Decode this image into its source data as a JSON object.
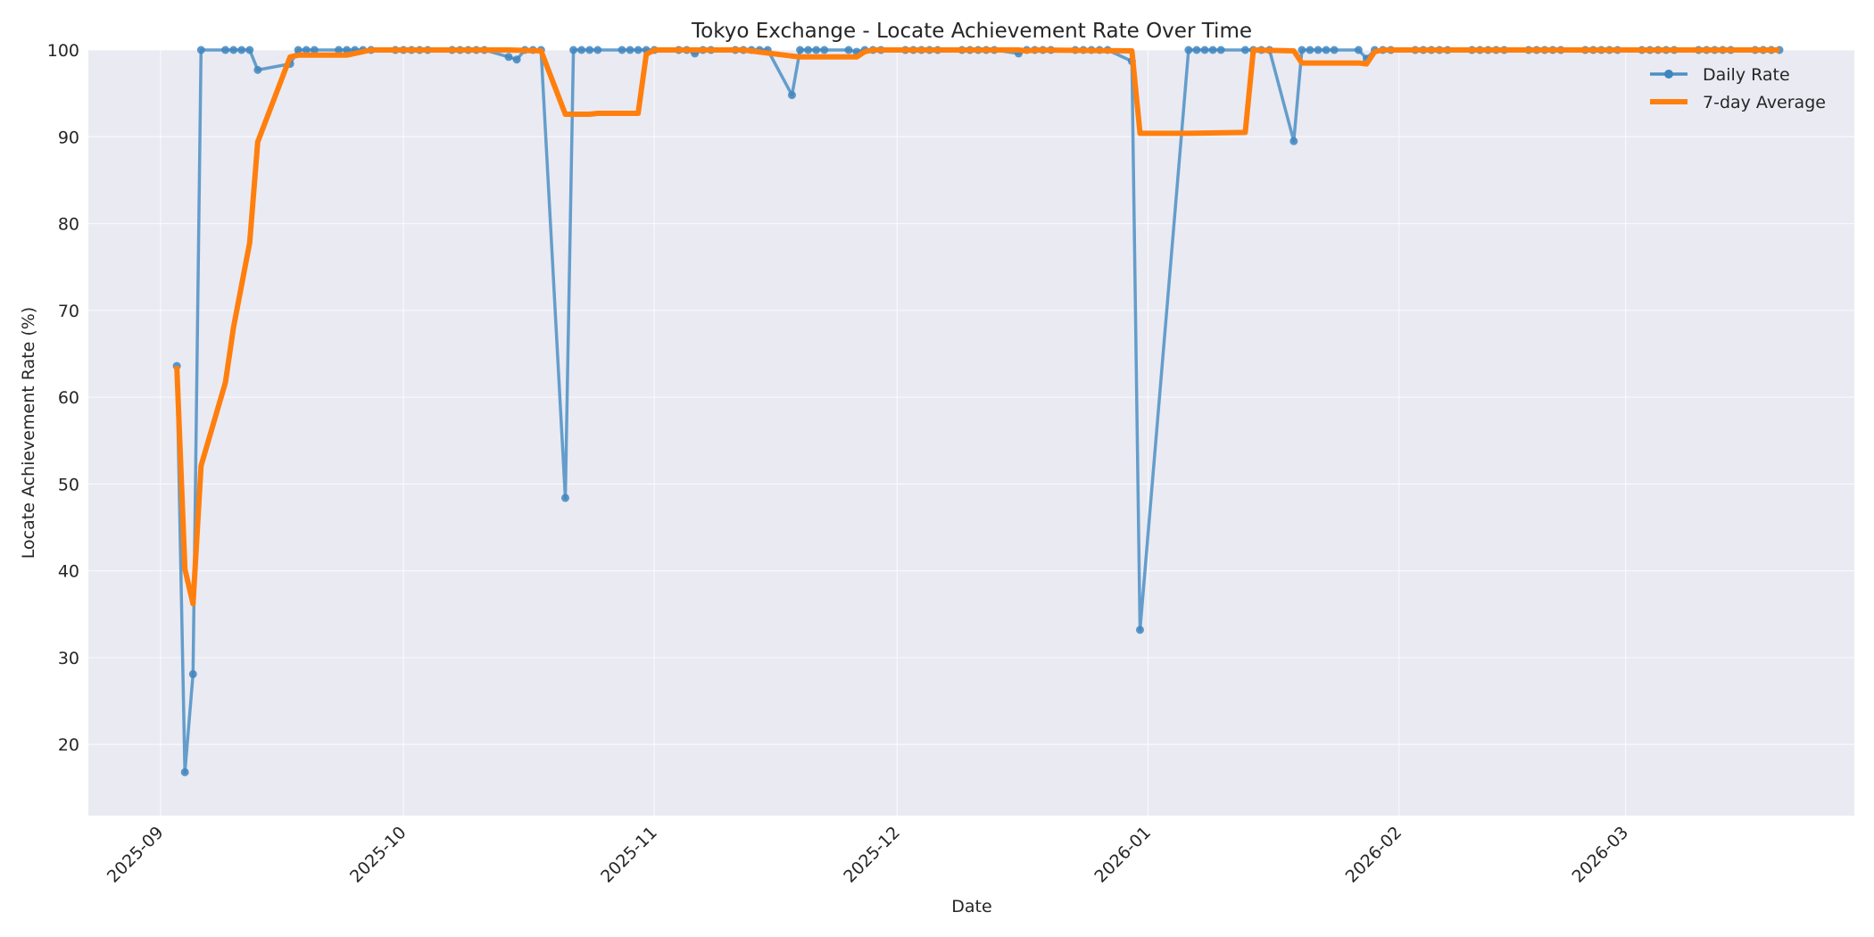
{
  "chart_data": {
    "type": "line",
    "title": "Tokyo Exchange - Locate Achievement Rate Over Time",
    "xlabel": "Date",
    "ylabel": "Locate Achievement Rate (%)",
    "ylim": [
      11.8,
      100
    ],
    "yticks": [
      20,
      30,
      40,
      50,
      60,
      70,
      80,
      90,
      100
    ],
    "xticks": [
      "2025-09",
      "2025-10",
      "2025-11",
      "2025-12",
      "2026-01",
      "2026-02",
      "2026-03"
    ],
    "xtick_day_offsets": [
      0,
      30,
      61,
      91,
      122,
      153,
      181
    ],
    "x_origin_date": "2025-09-01",
    "grid": true,
    "legend_position": "upper right",
    "series": [
      {
        "name": "Daily Rate",
        "color": "#4c8fc4",
        "marker": "circle",
        "points": [
          [
            2,
            63.6
          ],
          [
            3,
            16.8
          ],
          [
            4,
            28.1
          ],
          [
            5,
            100
          ],
          [
            8,
            100
          ],
          [
            9,
            100
          ],
          [
            10,
            100
          ],
          [
            11,
            100
          ],
          [
            12,
            97.7
          ],
          [
            16,
            98.4
          ],
          [
            17,
            100
          ],
          [
            18,
            100
          ],
          [
            19,
            100
          ],
          [
            22,
            100
          ],
          [
            23,
            100
          ],
          [
            24,
            100
          ],
          [
            25,
            100
          ],
          [
            26,
            100
          ],
          [
            29,
            100
          ],
          [
            30,
            100
          ],
          [
            31,
            100
          ],
          [
            32,
            100
          ],
          [
            33,
            100
          ],
          [
            36,
            100
          ],
          [
            37,
            100
          ],
          [
            38,
            100
          ],
          [
            39,
            100
          ],
          [
            40,
            100
          ],
          [
            43,
            99.2
          ],
          [
            44,
            98.9
          ],
          [
            45,
            100
          ],
          [
            46,
            100
          ],
          [
            47,
            100
          ],
          [
            50,
            48.4
          ],
          [
            51,
            100
          ],
          [
            52,
            100
          ],
          [
            53,
            100
          ],
          [
            54,
            100
          ],
          [
            57,
            100
          ],
          [
            58,
            100
          ],
          [
            59,
            100
          ],
          [
            60,
            100
          ],
          [
            61,
            100
          ],
          [
            64,
            100
          ],
          [
            65,
            100
          ],
          [
            66,
            99.6
          ],
          [
            67,
            100
          ],
          [
            68,
            100
          ],
          [
            71,
            100
          ],
          [
            72,
            100
          ],
          [
            73,
            100
          ],
          [
            74,
            100
          ],
          [
            75,
            100
          ],
          [
            78,
            94.8
          ],
          [
            79,
            100
          ],
          [
            80,
            100
          ],
          [
            81,
            100
          ],
          [
            82,
            100
          ],
          [
            85,
            100
          ],
          [
            86,
            99.8
          ],
          [
            87,
            100
          ],
          [
            88,
            100
          ],
          [
            89,
            100
          ],
          [
            92,
            100
          ],
          [
            93,
            100
          ],
          [
            94,
            100
          ],
          [
            95,
            100
          ],
          [
            96,
            100
          ],
          [
            99,
            100
          ],
          [
            100,
            100
          ],
          [
            101,
            100
          ],
          [
            102,
            100
          ],
          [
            103,
            100
          ],
          [
            106,
            99.6
          ],
          [
            107,
            100
          ],
          [
            108,
            100
          ],
          [
            109,
            100
          ],
          [
            110,
            100
          ],
          [
            113,
            100
          ],
          [
            114,
            100
          ],
          [
            115,
            100
          ],
          [
            116,
            100
          ],
          [
            117,
            100
          ],
          [
            120,
            98.7
          ],
          [
            121,
            33.2
          ],
          [
            127,
            100
          ],
          [
            128,
            100
          ],
          [
            129,
            100
          ],
          [
            130,
            100
          ],
          [
            131,
            100
          ],
          [
            134,
            100
          ],
          [
            135,
            100
          ],
          [
            136,
            100
          ],
          [
            137,
            100
          ],
          [
            140,
            89.5
          ],
          [
            141,
            100
          ],
          [
            142,
            100
          ],
          [
            143,
            100
          ],
          [
            144,
            100
          ],
          [
            145,
            100
          ],
          [
            148,
            100
          ],
          [
            149,
            99.0
          ],
          [
            150,
            100
          ],
          [
            151,
            100
          ],
          [
            152,
            100
          ],
          [
            155,
            100
          ],
          [
            156,
            100
          ],
          [
            157,
            100
          ],
          [
            158,
            100
          ],
          [
            159,
            100
          ],
          [
            162,
            100
          ],
          [
            163,
            100
          ],
          [
            164,
            100
          ],
          [
            165,
            100
          ],
          [
            166,
            100
          ],
          [
            169,
            100
          ],
          [
            170,
            100
          ],
          [
            171,
            100
          ],
          [
            172,
            100
          ],
          [
            173,
            100
          ],
          [
            176,
            100
          ],
          [
            177,
            100
          ],
          [
            178,
            100
          ],
          [
            179,
            100
          ],
          [
            180,
            100
          ],
          [
            183,
            100
          ],
          [
            184,
            100
          ],
          [
            185,
            100
          ],
          [
            186,
            100
          ],
          [
            187,
            100
          ],
          [
            190,
            100
          ],
          [
            191,
            100
          ],
          [
            192,
            100
          ],
          [
            193,
            100
          ],
          [
            194,
            100
          ],
          [
            197,
            100
          ],
          [
            198,
            100
          ],
          [
            199,
            100
          ],
          [
            200,
            100
          ]
        ]
      },
      {
        "name": "7-day Average",
        "color": "#ff7f0e",
        "marker": "none",
        "points": [
          [
            2,
            63.6
          ],
          [
            3,
            40.2
          ],
          [
            4,
            36.2
          ],
          [
            5,
            52.1
          ],
          [
            8,
            61.7
          ],
          [
            9,
            68.0
          ],
          [
            11,
            77.8
          ],
          [
            12,
            89.4
          ],
          [
            16,
            99.2
          ],
          [
            17,
            99.4
          ],
          [
            22,
            99.4
          ],
          [
            23,
            99.4
          ],
          [
            26,
            100
          ],
          [
            43,
            100
          ],
          [
            47,
            99.9
          ],
          [
            50,
            92.6
          ],
          [
            53,
            92.6
          ],
          [
            54,
            92.7
          ],
          [
            57,
            92.7
          ],
          [
            59,
            92.7
          ],
          [
            60,
            99.5
          ],
          [
            61,
            100
          ],
          [
            72,
            100
          ],
          [
            78,
            99.3
          ],
          [
            79,
            99.2
          ],
          [
            86,
            99.2
          ],
          [
            87,
            99.8
          ],
          [
            88,
            100
          ],
          [
            106,
            100
          ],
          [
            107,
            99.9
          ],
          [
            108,
            100
          ],
          [
            120,
            99.9
          ],
          [
            121,
            90.4
          ],
          [
            127,
            90.4
          ],
          [
            134,
            90.5
          ],
          [
            135,
            100
          ],
          [
            140,
            99.9
          ],
          [
            141,
            98.5
          ],
          [
            148,
            98.5
          ],
          [
            149,
            98.4
          ],
          [
            150,
            99.8
          ],
          [
            151,
            100
          ],
          [
            200,
            100
          ]
        ]
      }
    ]
  },
  "legend": {
    "items": [
      {
        "label": "Daily Rate"
      },
      {
        "label": "7-day Average"
      }
    ]
  }
}
